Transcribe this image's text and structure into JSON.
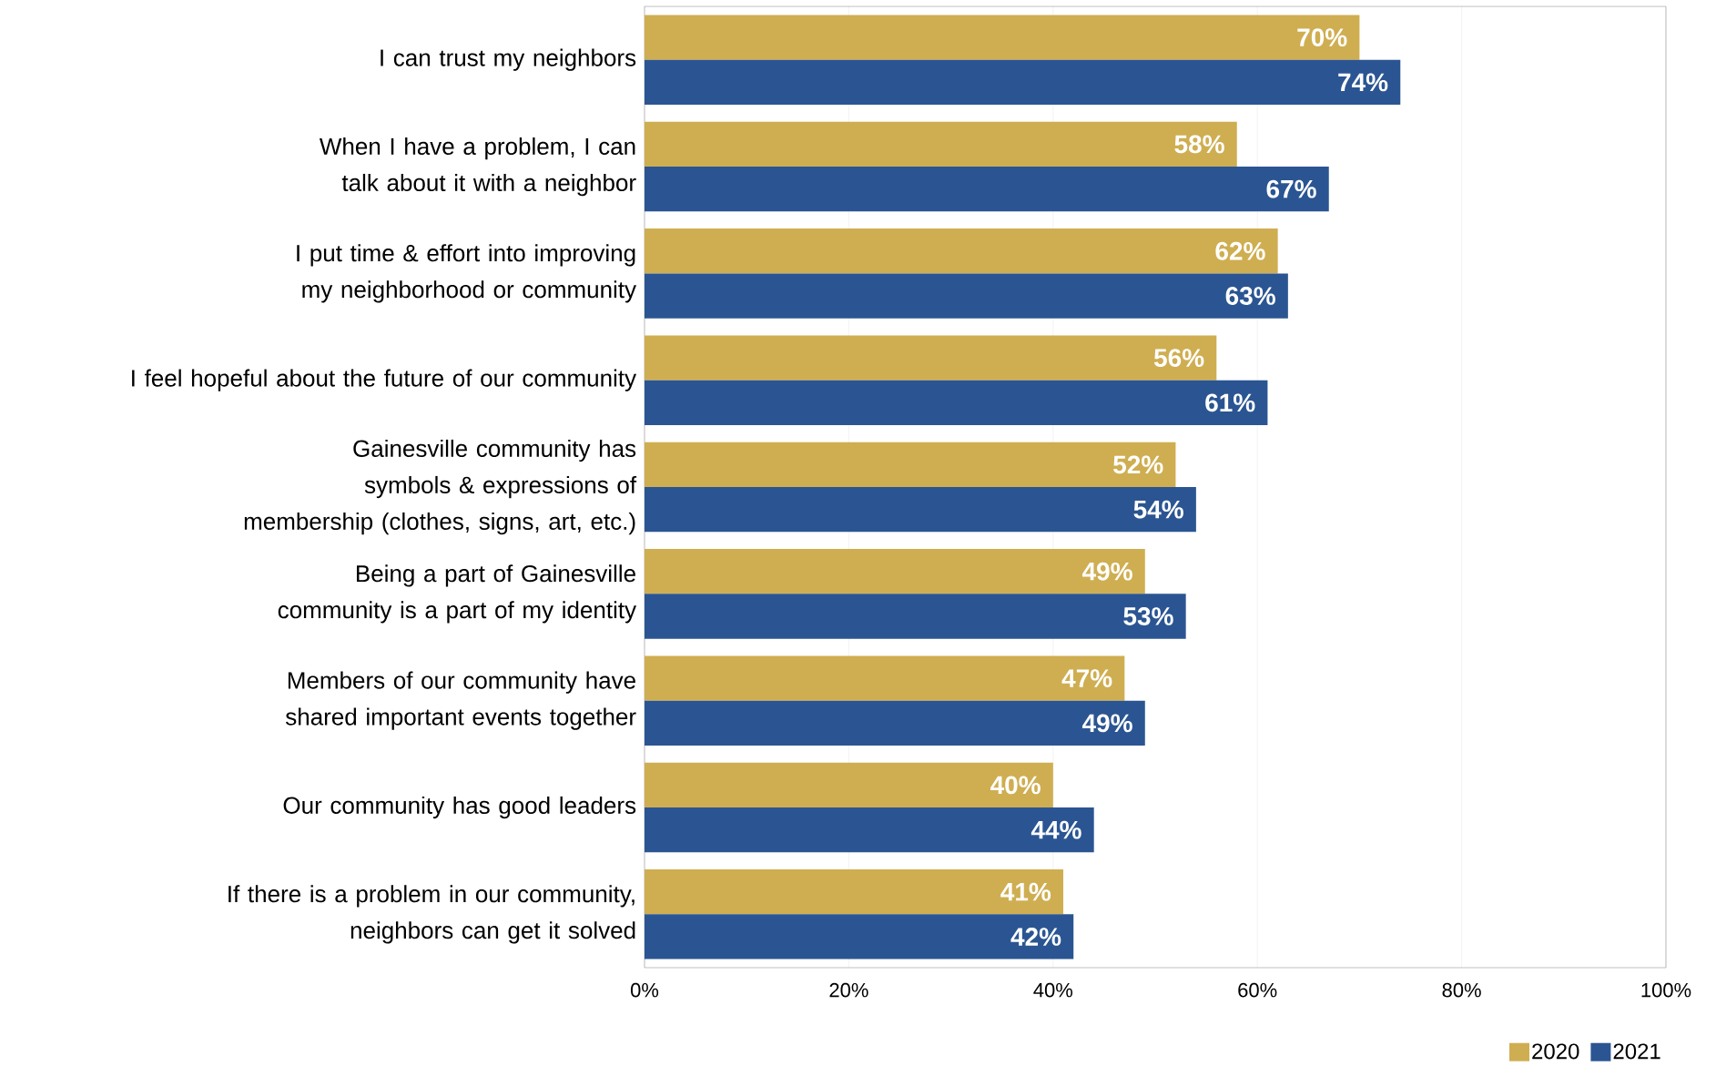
{
  "chart_data": {
    "type": "bar",
    "orientation": "horizontal",
    "categories": [
      "I can trust my neighbors",
      "When I have a problem, I can talk about it with a neighbor",
      "I put time & effort into improving my neighborhood or community",
      "I feel hopeful about the future of our community",
      "Gainesville community has symbols & expressions of membership (clothes, signs, art, etc.)",
      "Being a part of Gainesville community is a part of my identity",
      "Members of our community have shared important events together",
      "Our community has good leaders",
      "If there is a problem in our community, neighbors can get it solved"
    ],
    "series": [
      {
        "name": "2020",
        "color": "#cfae52",
        "values": [
          70,
          58,
          62,
          56,
          52,
          49,
          47,
          40,
          41
        ],
        "value_labels": [
          "70%",
          "58%",
          "62%",
          "56%",
          "52%",
          "49%",
          "47%",
          "40%",
          "41%"
        ]
      },
      {
        "name": "2021",
        "color": "#2b5592",
        "values": [
          74,
          67,
          63,
          61,
          54,
          53,
          49,
          44,
          42
        ],
        "value_labels": [
          "74%",
          "67%",
          "63%",
          "61%",
          "54%",
          "53%",
          "49%",
          "44%",
          "42%"
        ]
      }
    ],
    "xlim": [
      0,
      100
    ],
    "xticks": [
      {
        "value": 0,
        "label": "0%"
      },
      {
        "value": 20,
        "label": "20%"
      },
      {
        "value": 40,
        "label": "40%"
      },
      {
        "value": 60,
        "label": "60%"
      },
      {
        "value": 80,
        "label": "80%"
      },
      {
        "value": 100,
        "label": "100%"
      }
    ],
    "grid": "x",
    "legend": "bottom right"
  }
}
